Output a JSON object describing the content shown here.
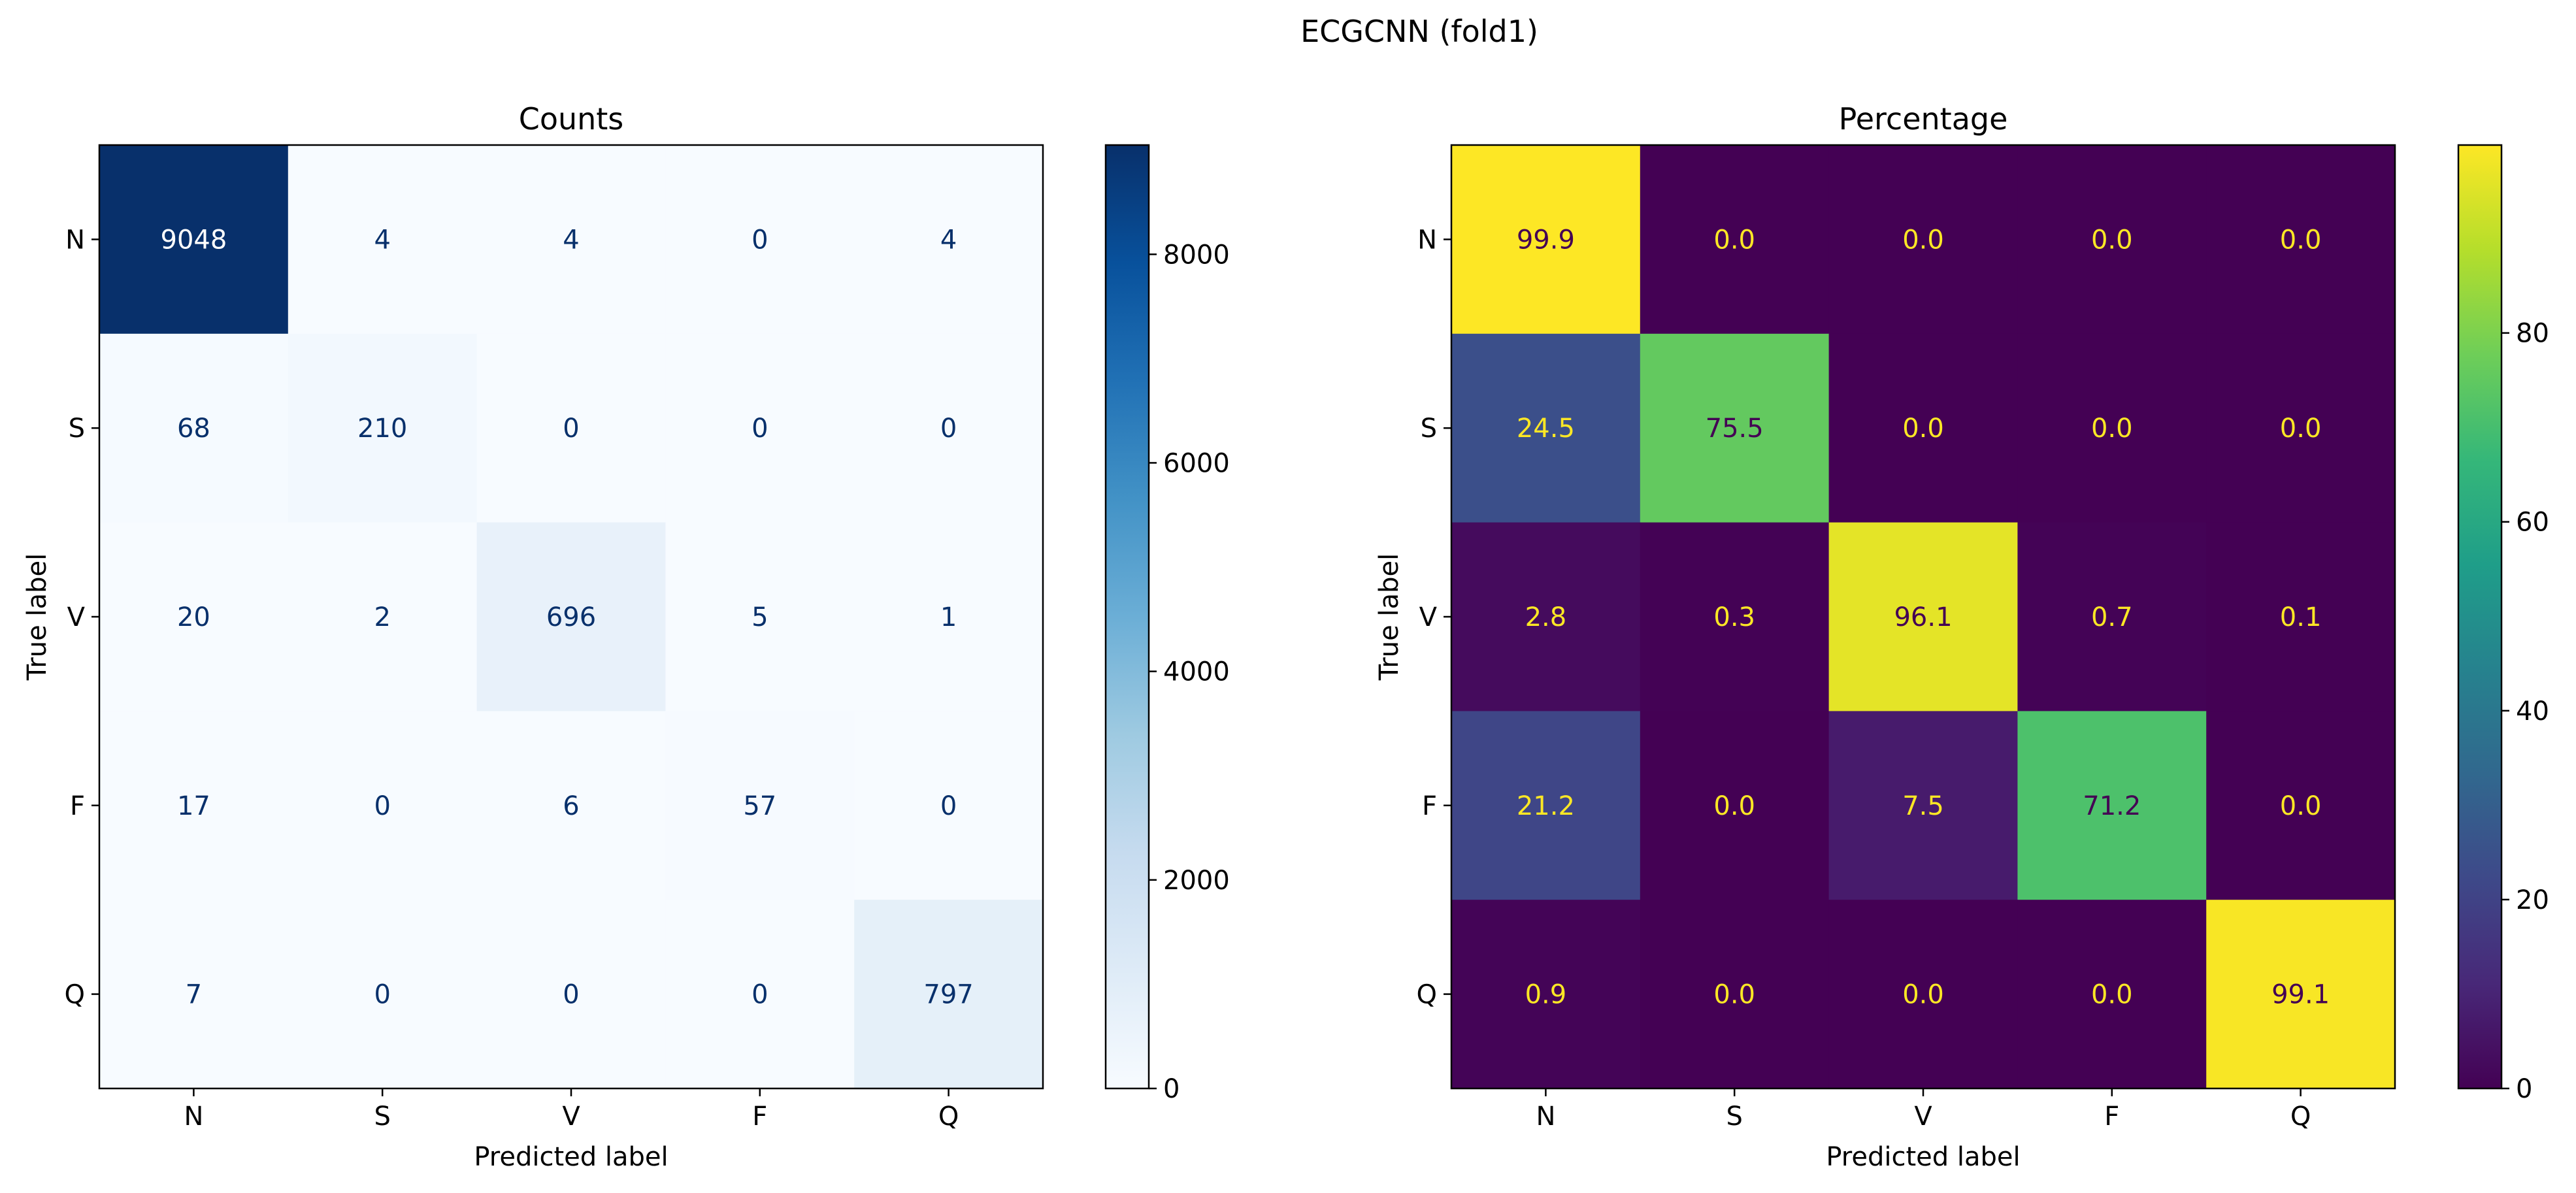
{
  "figure": {
    "suptitle": "ECGCNN (fold1)"
  },
  "chart_data": [
    {
      "type": "heatmap",
      "title": "Counts",
      "xlabel": "Predicted label",
      "ylabel": "True label",
      "x_categories": [
        "N",
        "S",
        "V",
        "F",
        "Q"
      ],
      "y_categories": [
        "N",
        "S",
        "V",
        "F",
        "Q"
      ],
      "values": [
        [
          9048,
          4,
          4,
          0,
          4
        ],
        [
          68,
          210,
          0,
          0,
          0
        ],
        [
          20,
          2,
          696,
          5,
          1
        ],
        [
          17,
          0,
          6,
          57,
          0
        ],
        [
          7,
          0,
          0,
          0,
          797
        ]
      ],
      "value_format": "integer",
      "colormap": "Blues",
      "color_range": [
        0,
        9048
      ],
      "colorbar_ticks": [
        0,
        2000,
        4000,
        6000,
        8000
      ]
    },
    {
      "type": "heatmap",
      "title": "Percentage",
      "xlabel": "Predicted label",
      "ylabel": "True label",
      "x_categories": [
        "N",
        "S",
        "V",
        "F",
        "Q"
      ],
      "y_categories": [
        "N",
        "S",
        "V",
        "F",
        "Q"
      ],
      "values": [
        [
          99.9,
          0.0,
          0.0,
          0.0,
          0.0
        ],
        [
          24.5,
          75.5,
          0.0,
          0.0,
          0.0
        ],
        [
          2.8,
          0.3,
          96.1,
          0.7,
          0.1
        ],
        [
          21.2,
          0.0,
          7.5,
          71.2,
          0.0
        ],
        [
          0.9,
          0.0,
          0.0,
          0.0,
          99.1
        ]
      ],
      "value_format": "one-decimal",
      "colormap": "viridis",
      "color_range": [
        0,
        99.9
      ],
      "colorbar_ticks": [
        0,
        20,
        40,
        60,
        80
      ]
    }
  ]
}
